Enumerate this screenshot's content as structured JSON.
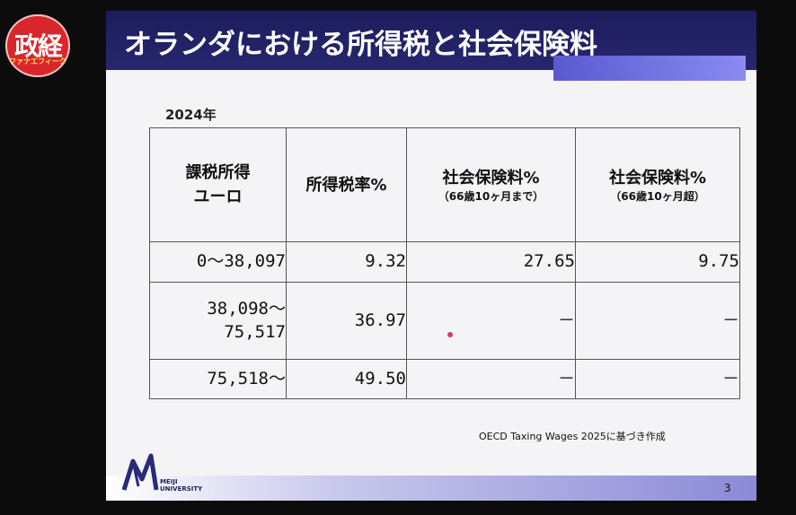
{
  "logo": {
    "main": "政経",
    "sub": "ファナエフィーク"
  },
  "slide": {
    "title": "オランダにおける所得税と社会保険料",
    "year": "2024年",
    "table": {
      "headers": [
        {
          "line1": "課税所得",
          "line2": "ユーロ",
          "sub": ""
        },
        {
          "line1": "所得税率%",
          "line2": "",
          "sub": ""
        },
        {
          "line1": "社会保険料%",
          "line2": "",
          "sub": "（66歳10ヶ月まで）"
        },
        {
          "line1": "社会保険料%",
          "line2": "",
          "sub": "（66歳10ヶ月超）"
        }
      ],
      "rows": [
        {
          "income_line1": "0～38,097",
          "income_line2": "",
          "tax": "9.32",
          "ins1": "27.65",
          "ins2": "9.75"
        },
        {
          "income_line1": "38,098～",
          "income_line2": "75,517",
          "tax": "36.97",
          "ins1": "－",
          "ins2": "－"
        },
        {
          "income_line1": "75,518～",
          "income_line2": "",
          "tax": "49.50",
          "ins1": "－",
          "ins2": "－"
        }
      ]
    },
    "source": "OECD Taxing Wages 2025に基づき作成",
    "university_line1": "MEIJI",
    "university_line2": "UNIVERSITY",
    "page_number": "3"
  }
}
